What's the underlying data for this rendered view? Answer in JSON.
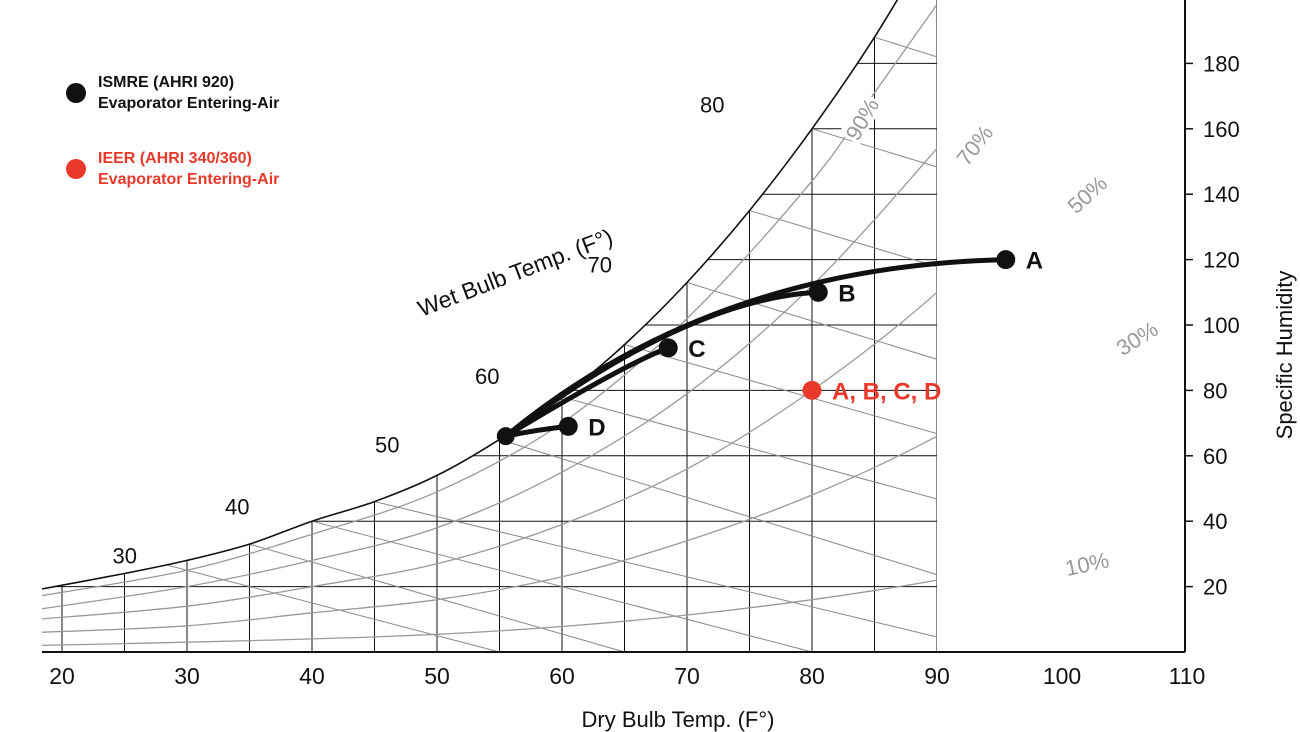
{
  "chart_data": {
    "type": "scatter",
    "title": "",
    "xlabel": "Dry Bulb Temp. (F°)",
    "ylabel": "Specific Humidity",
    "wet_bulb_label": "Wet Bulb Temp. (F°)",
    "xlim": [
      18,
      110
    ],
    "ylim": [
      0,
      190
    ],
    "x_ticks": [
      20,
      30,
      40,
      50,
      60,
      70,
      80,
      90,
      100,
      110
    ],
    "y_ticks": [
      20,
      40,
      60,
      80,
      100,
      120,
      140,
      160,
      180
    ],
    "grid": true,
    "saturation_curve": [
      [
        18,
        19
      ],
      [
        25,
        24
      ],
      [
        30,
        28
      ],
      [
        35,
        33
      ],
      [
        40,
        40
      ],
      [
        45,
        46
      ],
      [
        50,
        54
      ],
      [
        55,
        65
      ],
      [
        60,
        78
      ],
      [
        65,
        94
      ],
      [
        70,
        113
      ],
      [
        75,
        135
      ],
      [
        80,
        160
      ],
      [
        85,
        188
      ],
      [
        90,
        220
      ]
    ],
    "rh_curves": [
      {
        "label": "90%",
        "values": [
          [
            18,
            17
          ],
          [
            30,
            25
          ],
          [
            40,
            36
          ],
          [
            50,
            49
          ],
          [
            60,
            70
          ],
          [
            70,
            102
          ],
          [
            80,
            144
          ],
          [
            85,
            171
          ],
          [
            90,
            198
          ]
        ]
      },
      {
        "label": "70%",
        "values": [
          [
            18,
            13
          ],
          [
            30,
            20
          ],
          [
            40,
            28
          ],
          [
            50,
            38
          ],
          [
            60,
            55
          ],
          [
            70,
            79
          ],
          [
            80,
            112
          ],
          [
            90,
            154
          ],
          [
            95,
            178
          ],
          [
            100,
            206
          ]
        ]
      },
      {
        "label": "50%",
        "values": [
          [
            18,
            10
          ],
          [
            30,
            14
          ],
          [
            40,
            20
          ],
          [
            50,
            27
          ],
          [
            60,
            39
          ],
          [
            70,
            56
          ],
          [
            80,
            80
          ],
          [
            90,
            110
          ],
          [
            100,
            148
          ],
          [
            105,
            172
          ],
          [
            110,
            202
          ]
        ]
      },
      {
        "label": "30%",
        "values": [
          [
            18,
            6
          ],
          [
            30,
            8
          ],
          [
            40,
            12
          ],
          [
            50,
            16
          ],
          [
            60,
            23
          ],
          [
            70,
            34
          ],
          [
            80,
            48
          ],
          [
            90,
            66
          ],
          [
            100,
            89
          ],
          [
            110,
            120
          ]
        ]
      },
      {
        "label": "10%",
        "values": [
          [
            18,
            2
          ],
          [
            30,
            3
          ],
          [
            40,
            4
          ],
          [
            50,
            5.4
          ],
          [
            60,
            7.8
          ],
          [
            70,
            11.3
          ],
          [
            80,
            16
          ],
          [
            90,
            22
          ],
          [
            100,
            30
          ],
          [
            110,
            40
          ]
        ]
      }
    ],
    "wet_bulb_lines": [
      {
        "label": "30",
        "from": [
          28,
          27
        ],
        "to": [
          55,
          0
        ]
      },
      {
        "label": "40",
        "from": [
          40,
          40
        ],
        "to": [
          80,
          0
        ]
      },
      {
        "label": "50",
        "from": [
          55,
          65
        ],
        "to": [
          110,
          0
        ]
      },
      {
        "label": "60",
        "from": [
          60,
          78
        ],
        "to": [
          110,
          26
        ]
      },
      {
        "label": "70",
        "from": [
          70,
          113
        ],
        "to": [
          110,
          66
        ]
      },
      {
        "label": "80",
        "from": [
          80,
          160
        ],
        "to": [
          110,
          125
        ]
      }
    ],
    "series": [
      {
        "name": "ISMRE (AHRI 920)\nEvaporator Entering-Air",
        "color": "#111111",
        "points": [
          {
            "label": "A",
            "x": 95.5,
            "y": 120
          },
          {
            "label": "B",
            "x": 80.5,
            "y": 110
          },
          {
            "label": "C",
            "x": 68.5,
            "y": 93
          },
          {
            "label": "D",
            "x": 60.5,
            "y": 69
          }
        ]
      },
      {
        "name": "IEER (AHRI 340/360)\nEvaporator Entering-Air",
        "color": "#e8392a",
        "points": [
          {
            "label": "A, B, C, D",
            "x": 80,
            "y": 80
          }
        ]
      }
    ],
    "process_lines": [
      {
        "from": [
          55.5,
          66
        ],
        "via": [
          72,
          118
        ],
        "to": [
          95.5,
          120
        ]
      },
      {
        "from": [
          55.5,
          66
        ],
        "via": [
          70,
          108
        ],
        "to": [
          80.5,
          110
        ]
      },
      {
        "from": [
          55.5,
          66
        ],
        "via": [
          65,
          88
        ],
        "to": [
          68.5,
          93
        ]
      },
      {
        "from": [
          55.5,
          66
        ],
        "via": [
          58,
          68
        ],
        "to": [
          60.5,
          69
        ]
      }
    ]
  },
  "legend": [
    {
      "line1": "ISMRE (AHRI 920)",
      "line2": "Evaporator Entering-Air",
      "color": "#111111"
    },
    {
      "line1": "IEER (AHRI 340/360)",
      "line2": "Evaporator Entering-Air",
      "color": "#e8392a"
    }
  ]
}
